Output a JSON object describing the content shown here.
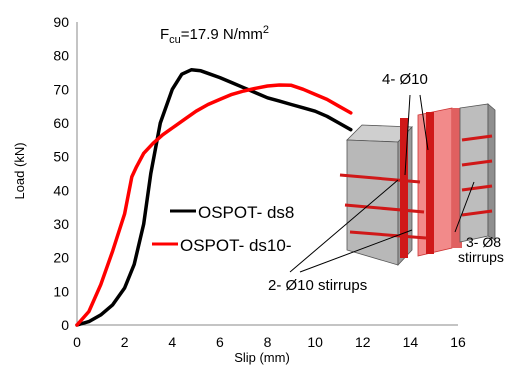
{
  "chart_data": {
    "type": "line",
    "annotation_title": "Fcu=17.9 N/mm2",
    "annotation_title_parts": {
      "main": "F",
      "sub": "cu",
      "rest": "=17.9 N/mm",
      "sup": "2"
    },
    "xlabel": "Slip (mm)",
    "ylabel": "Load (kN)",
    "xlim": [
      0,
      16
    ],
    "ylim": [
      0,
      90
    ],
    "xticks": [
      0,
      2,
      4,
      6,
      8,
      10,
      12,
      14,
      16
    ],
    "yticks": [
      0,
      10,
      20,
      30,
      40,
      50,
      60,
      70,
      80,
      90
    ],
    "grid": false,
    "legend_position": "center-left",
    "series": [
      {
        "name": "OSPOT- ds8",
        "color": "#000000",
        "x": [
          0,
          0.5,
          1.0,
          1.5,
          2.0,
          2.4,
          2.8,
          3.1,
          3.5,
          4.0,
          4.4,
          4.8,
          5.2,
          5.6,
          6.0,
          6.5,
          7.0,
          7.5,
          8.0,
          8.5,
          9.0,
          9.5,
          10.0,
          10.5,
          11.0,
          11.5
        ],
        "y": [
          0,
          1,
          3,
          6,
          11,
          18,
          30,
          45,
          60,
          70,
          74.5,
          75.8,
          75.5,
          74.5,
          73.5,
          72,
          70.5,
          69,
          67.5,
          66.5,
          65.5,
          64.5,
          63.5,
          62,
          60,
          58
        ]
      },
      {
        "name": "OSPOT- ds10-",
        "color": "#ff0000",
        "x": [
          0,
          0.5,
          1.0,
          1.5,
          2.0,
          2.3,
          2.5,
          2.8,
          3.2,
          3.6,
          4.0,
          4.5,
          5.0,
          5.5,
          6.0,
          6.5,
          7.0,
          7.5,
          8.0,
          8.5,
          9.0,
          9.5,
          10.0,
          10.5,
          11.0,
          11.5
        ],
        "y": [
          0,
          4,
          12,
          22,
          33,
          44,
          47,
          51,
          54,
          56.5,
          58.5,
          61,
          63.5,
          65.5,
          67,
          68.5,
          69.5,
          70.3,
          71,
          71.3,
          71.2,
          70,
          68.5,
          67,
          65,
          63
        ]
      }
    ]
  },
  "inset": {
    "labels": {
      "top": "4- Ø10",
      "right_line1": "3- Ø8",
      "right_line2": "stirrups",
      "bottom": "2- Ø10 stirrups"
    },
    "colors": {
      "concrete": "#b8b8b8",
      "steel": "#d01818",
      "plate": "#f28a8a"
    }
  }
}
